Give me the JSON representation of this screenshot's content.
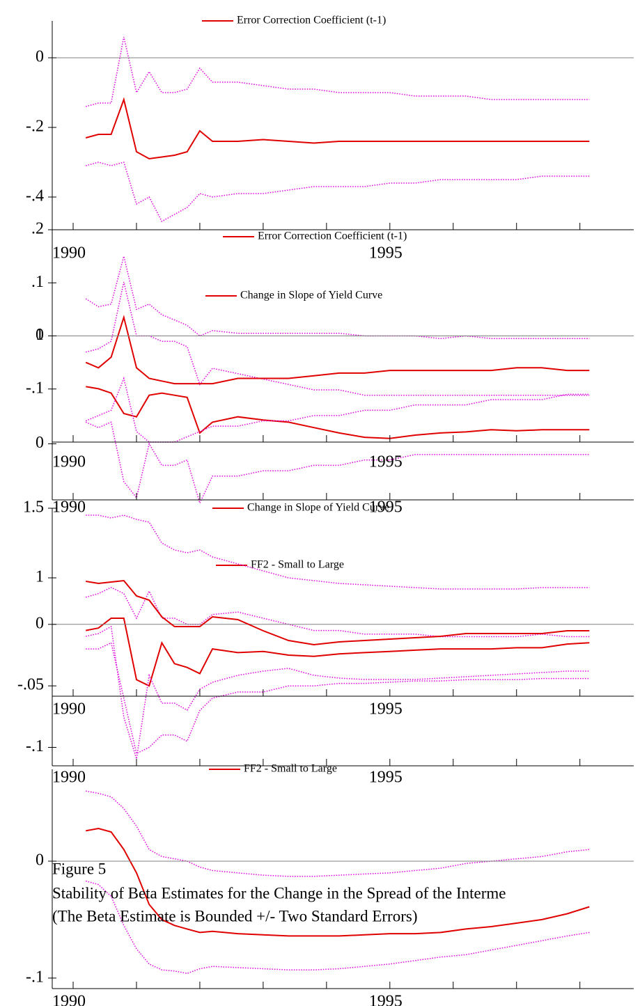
{
  "chart_data": [
    {
      "type": "line",
      "legend": "top",
      "zero_line": true,
      "x": [
        1990.2,
        1990.4,
        1990.6,
        1990.8,
        1991.0,
        1991.2,
        1991.4,
        1991.6,
        1991.8,
        1992.0,
        1992.2,
        1992.6,
        1993.0,
        1993.4,
        1993.8,
        1994.2,
        1994.6,
        1995.0,
        1995.4,
        1995.8,
        1996.2,
        1996.6,
        1997.0,
        1997.4,
        1997.8,
        1998.15
      ],
      "xlim": [
        1989.67,
        1998.85
      ],
      "xticks": [
        1990,
        1995
      ],
      "xminor": [
        1991,
        1992,
        1993,
        1994,
        1996,
        1997,
        1998
      ],
      "ylim": [
        -0.494,
        0.106
      ],
      "yticks": [
        0,
        {
          "value": -0.2,
          "label": "-.2"
        },
        {
          "value": -0.4,
          "label": "-.4"
        }
      ],
      "series": [
        {
          "name": "Error Correction Coefficient (t-1)",
          "color": "#e00000",
          "values": [
            -0.23,
            -0.22,
            -0.22,
            -0.12,
            -0.27,
            -0.29,
            -0.285,
            -0.28,
            -0.27,
            -0.21,
            -0.24,
            -0.24,
            -0.235,
            -0.24,
            -0.245,
            -0.24,
            -0.24,
            -0.24,
            -0.24,
            -0.24,
            -0.24,
            -0.24,
            -0.24,
            -0.24,
            -0.24,
            -0.24
          ]
        }
      ],
      "bands": [
        {
          "color": "#e000e0",
          "values": [
            -0.14,
            -0.13,
            -0.13,
            0.06,
            -0.1,
            -0.04,
            -0.1,
            -0.1,
            -0.09,
            -0.03,
            -0.07,
            -0.07,
            -0.08,
            -0.09,
            -0.09,
            -0.1,
            -0.1,
            -0.1,
            -0.11,
            -0.11,
            -0.11,
            -0.12,
            -0.12,
            -0.12,
            -0.12,
            -0.12
          ]
        },
        {
          "color": "#e000e0",
          "values": [
            -0.31,
            -0.3,
            -0.31,
            -0.3,
            -0.42,
            -0.4,
            -0.47,
            -0.45,
            -0.43,
            -0.39,
            -0.4,
            -0.39,
            -0.39,
            -0.38,
            -0.37,
            -0.37,
            -0.37,
            -0.36,
            -0.36,
            -0.35,
            -0.35,
            -0.35,
            -0.35,
            -0.34,
            -0.34,
            -0.34
          ]
        }
      ]
    },
    {
      "type": "line",
      "legend": "top",
      "zero_line": true,
      "x": [
        1990.2,
        1990.4,
        1990.6,
        1990.8,
        1991.0,
        1991.2,
        1991.4,
        1991.6,
        1991.8,
        1992.0,
        1992.2,
        1992.6,
        1993.0,
        1993.4,
        1993.8,
        1994.2,
        1994.6,
        1995.0,
        1995.4,
        1995.8,
        1996.2,
        1996.6,
        1997.0,
        1997.4,
        1997.8,
        1998.15
      ],
      "xlim": [
        1989.67,
        1998.85
      ],
      "xticks": [
        1990,
        1995
      ],
      "xminor": [
        1991,
        1992,
        1993,
        1994,
        1996,
        1997,
        1998
      ],
      "ylim": [
        -0.2,
        0.2
      ],
      "yticks": [
        {
          "value": 0.2,
          "label": ".2"
        },
        {
          "value": 0.1,
          "label": ".1"
        },
        0,
        {
          "value": -0.1,
          "label": "-.1"
        }
      ],
      "series": [
        {
          "name": "Error Correction Coefficient (t-1)",
          "color": "#e00000",
          "values": [
            -0.05,
            -0.06,
            -0.04,
            0.035,
            -0.06,
            -0.08,
            -0.085,
            -0.09,
            -0.09,
            -0.09,
            -0.09,
            -0.08,
            -0.08,
            -0.08,
            -0.075,
            -0.07,
            -0.07,
            -0.065,
            -0.065,
            -0.065,
            -0.065,
            -0.065,
            -0.06,
            -0.06,
            -0.065,
            -0.065
          ]
        }
      ],
      "bands": [
        {
          "color": "#e000e0",
          "values": [
            0.07,
            0.055,
            0.06,
            0.15,
            0.05,
            0.06,
            0.04,
            0.03,
            0.02,
            0.0,
            0.01,
            0.005,
            0.005,
            0.005,
            0.005,
            0.005,
            0.0,
            0.0,
            0.0,
            -0.005,
            0.0,
            -0.005,
            -0.005,
            -0.005,
            -0.005,
            -0.005
          ]
        },
        {
          "color": "#e000e0",
          "values": [
            -0.16,
            -0.15,
            -0.14,
            -0.08,
            -0.18,
            -0.2,
            -0.2,
            -0.2,
            -0.19,
            -0.18,
            -0.17,
            -0.17,
            -0.16,
            -0.16,
            -0.15,
            -0.15,
            -0.14,
            -0.14,
            -0.13,
            -0.13,
            -0.13,
            -0.12,
            -0.12,
            -0.12,
            -0.11,
            -0.11
          ]
        }
      ]
    },
    {
      "type": "line",
      "legend": "top",
      "zero_line": false,
      "x": [
        1990.2,
        1990.4,
        1990.6,
        1990.8,
        1991.0,
        1991.2,
        1991.4,
        1991.6,
        1991.8,
        1992.0,
        1992.2,
        1992.6,
        1993.0,
        1993.4,
        1993.8,
        1994.2,
        1994.6,
        1995.0,
        1995.4,
        1995.8,
        1996.2,
        1996.6,
        1997.0,
        1997.4,
        1997.8,
        1998.15
      ],
      "xlim": [
        1989.67,
        1998.85
      ],
      "xticks": [
        1990,
        1995
      ],
      "xminor": [
        1991,
        1992,
        1993,
        1994,
        1996,
        1997,
        1998
      ],
      "ylim": [
        -0.52,
        1.5
      ],
      "yticks": [
        1,
        0
      ],
      "series": [
        {
          "name": "Change in Slope of Yield Curve",
          "color": "#e00000",
          "values": [
            0.53,
            0.51,
            0.47,
            0.28,
            0.25,
            0.45,
            0.47,
            0.45,
            0.43,
            0.1,
            0.2,
            0.25,
            0.22,
            0.2,
            0.15,
            0.1,
            0.06,
            0.05,
            0.08,
            0.1,
            0.11,
            0.13,
            0.12,
            0.13,
            0.13,
            0.13
          ]
        }
      ],
      "bands": [
        {
          "color": "#e000e0",
          "values": [
            0.85,
            0.88,
            0.95,
            1.5,
            1.0,
            1.0,
            0.95,
            0.95,
            0.9,
            0.55,
            0.7,
            0.65,
            0.6,
            0.55,
            0.5,
            0.5,
            0.45,
            0.45,
            0.45,
            0.45,
            0.45,
            0.45,
            0.45,
            0.45,
            0.45,
            0.45
          ]
        },
        {
          "color": "#e000e0",
          "values": [
            0.2,
            0.15,
            0.2,
            -0.35,
            -0.5,
            0,
            -0.2,
            -0.2,
            -0.15,
            -0.55,
            -0.3,
            -0.3,
            -0.25,
            -0.25,
            -0.2,
            -0.2,
            -0.15,
            -0.15,
            -0.1,
            -0.1,
            -0.1,
            -0.1,
            -0.1,
            -0.1,
            -0.1,
            -0.1
          ]
        }
      ]
    },
    {
      "type": "line",
      "legend": "top",
      "zero_line": false,
      "x": [
        1990.2,
        1990.4,
        1990.6,
        1990.8,
        1991.0,
        1991.2,
        1991.4,
        1991.6,
        1991.8,
        1992.0,
        1992.2,
        1992.6,
        1993.0,
        1993.4,
        1993.8,
        1994.2,
        1994.6,
        1995.0,
        1995.4,
        1995.8,
        1996.2,
        1996.6,
        1997.0,
        1997.4,
        1997.8,
        1998.15
      ],
      "xlim": [
        1989.67,
        1998.85
      ],
      "xticks": [
        1990,
        1995
      ],
      "xminor": [
        1991,
        1992,
        1993,
        1994,
        1996,
        1997,
        1998
      ],
      "ylim": [
        0.15,
        1.5
      ],
      "yticks": [
        1.5,
        1
      ],
      "series": [
        {
          "name": "Change in Slope of Yield Curve",
          "color": "#e00000",
          "values": [
            0.975,
            0.96,
            0.97,
            0.98,
            0.87,
            0.84,
            0.72,
            0.65,
            0.65,
            0.65,
            0.72,
            0.7,
            0.62,
            0.55,
            0.52,
            0.54,
            0.55,
            0.56,
            0.57,
            0.58,
            0.6,
            0.6,
            0.6,
            0.6,
            0.62,
            0.62
          ]
        }
      ],
      "bands": [
        {
          "color": "#e000e0",
          "values": [
            1.45,
            1.45,
            1.43,
            1.45,
            1.42,
            1.4,
            1.25,
            1.2,
            1.18,
            1.2,
            1.15,
            1.1,
            1.05,
            1.0,
            0.98,
            0.96,
            0.95,
            0.94,
            0.93,
            0.92,
            0.92,
            0.92,
            0.92,
            0.93,
            0.93,
            0.93
          ]
        },
        {
          "color": "#e000e0",
          "values": [
            0.58,
            0.6,
            0.65,
            0.0,
            -0.3,
            0.3,
            0.1,
            0.1,
            0.05,
            0.2,
            0.25,
            0.3,
            0.33,
            0.35,
            0.3,
            0.28,
            0.27,
            0.27,
            0.27,
            0.28,
            0.29,
            0.3,
            0.31,
            0.32,
            0.33,
            0.33
          ]
        }
      ]
    },
    {
      "type": "line",
      "legend": "top",
      "zero_line": true,
      "x": [
        1990.2,
        1990.4,
        1990.6,
        1990.8,
        1991.0,
        1991.2,
        1991.4,
        1991.6,
        1991.8,
        1992.0,
        1992.2,
        1992.6,
        1993.0,
        1993.4,
        1993.8,
        1994.2,
        1994.6,
        1995.0,
        1995.4,
        1995.8,
        1996.2,
        1996.6,
        1997.0,
        1997.4,
        1997.8,
        1998.15
      ],
      "xlim": [
        1989.67,
        1998.85
      ],
      "xticks": [
        1990,
        1995
      ],
      "xminor": [
        1991,
        1992,
        1993,
        1994,
        1996,
        1997,
        1998
      ],
      "ylim": [
        -0.115,
        0.048
      ],
      "yticks": [
        0,
        {
          "value": -0.05,
          "label": "-.05"
        },
        {
          "value": -0.1,
          "label": "-.1"
        }
      ],
      "series": [
        {
          "name": "FF2 - Small to Large",
          "color": "#e00000",
          "values": [
            -0.005,
            -0.003,
            0.005,
            0.005,
            -0.045,
            -0.05,
            -0.015,
            -0.032,
            -0.035,
            -0.04,
            -0.02,
            -0.023,
            -0.022,
            -0.025,
            -0.026,
            -0.024,
            -0.023,
            -0.022,
            -0.021,
            -0.02,
            -0.02,
            -0.02,
            -0.019,
            -0.019,
            -0.016,
            -0.015
          ]
        }
      ],
      "bands": [
        {
          "color": "#e000e0",
          "values": [
            0.022,
            0.025,
            0.03,
            0.025,
            0.005,
            0.027,
            0.005,
            0.005,
            0.0,
            0.0,
            0.008,
            0.01,
            0.005,
            0.0,
            -0.005,
            -0.005,
            -0.008,
            -0.008,
            -0.008,
            -0.01,
            -0.01,
            -0.01,
            -0.01,
            -0.008,
            -0.01,
            -0.01
          ]
        },
        {
          "color": "#e000e0",
          "values": [
            -0.02,
            -0.02,
            -0.015,
            -0.06,
            -0.105,
            -0.1,
            -0.09,
            -0.09,
            -0.095,
            -0.07,
            -0.06,
            -0.055,
            -0.055,
            -0.05,
            -0.05,
            -0.048,
            -0.048,
            -0.047,
            -0.046,
            -0.046,
            -0.045,
            -0.045,
            -0.045,
            -0.044,
            -0.044,
            -0.044
          ]
        }
      ]
    },
    {
      "type": "line",
      "legend": "top",
      "zero_line": true,
      "x": [
        1990.2,
        1990.4,
        1990.6,
        1990.8,
        1991.0,
        1991.2,
        1991.4,
        1991.6,
        1991.8,
        1992.0,
        1992.2,
        1992.6,
        1993.0,
        1993.4,
        1993.8,
        1994.2,
        1994.6,
        1995.0,
        1995.4,
        1995.8,
        1996.2,
        1996.6,
        1997.0,
        1997.4,
        1997.8,
        1998.15
      ],
      "xlim": [
        1989.67,
        1998.85
      ],
      "xticks": [
        1990,
        1995
      ],
      "xminor": [
        1991,
        1992,
        1993,
        1994,
        1996,
        1997,
        1998
      ],
      "ylim": [
        -0.109,
        0.0786
      ],
      "yticks": [
        0,
        {
          "value": -0.1,
          "label": "-.1"
        }
      ],
      "series": [
        {
          "name": "FF2 - Small to Large",
          "color": "#e00000",
          "values": [
            0.026,
            0.028,
            0.025,
            0.01,
            -0.01,
            -0.037,
            -0.05,
            -0.055,
            -0.058,
            -0.061,
            -0.06,
            -0.062,
            -0.063,
            -0.064,
            -0.064,
            -0.064,
            -0.063,
            -0.062,
            -0.062,
            -0.061,
            -0.058,
            -0.056,
            -0.053,
            -0.05,
            -0.045,
            -0.039
          ]
        }
      ],
      "bands": [
        {
          "color": "#e000e0",
          "values": [
            0.06,
            0.058,
            0.055,
            0.045,
            0.03,
            0.01,
            0.004,
            0.002,
            0.0,
            -0.005,
            -0.008,
            -0.01,
            -0.012,
            -0.013,
            -0.013,
            -0.012,
            -0.011,
            -0.01,
            -0.008,
            -0.006,
            -0.002,
            0.0,
            0.002,
            0.004,
            0.008,
            0.01
          ]
        },
        {
          "color": "#e000e0",
          "values": [
            -0.017,
            -0.02,
            -0.03,
            -0.055,
            -0.075,
            -0.088,
            -0.093,
            -0.094,
            -0.096,
            -0.092,
            -0.09,
            -0.091,
            -0.092,
            -0.093,
            -0.093,
            -0.092,
            -0.09,
            -0.088,
            -0.085,
            -0.082,
            -0.08,
            -0.076,
            -0.072,
            -0.068,
            -0.064,
            -0.061
          ]
        }
      ]
    }
  ],
  "figure": {
    "label": "Figure 5",
    "title": "Stability of Beta Estimates for the Change in the Spread of the Interme",
    "subtitle": "(The Beta Estimate is Bounded +/- Two Standard Errors)"
  }
}
